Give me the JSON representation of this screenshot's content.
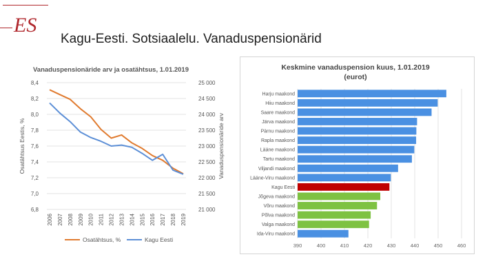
{
  "slide": {
    "title": "Kagu-Eesti. Sotsiaalelu. Vanaduspensionärid",
    "logo": "ES"
  },
  "colors": {
    "accent": "#b0282d",
    "orange": "#e07a2e",
    "blue": "#5b8ed6",
    "bar_blue": "#4a90e2",
    "bar_red": "#c00000",
    "bar_green": "#7ec242"
  },
  "chart_data": [
    {
      "type": "line",
      "title": "Vanaduspensionäride arv ja osatähtsus, 1.01.2019",
      "x": [
        "2006",
        "2007",
        "2008",
        "2009",
        "2010",
        "2011",
        "2012",
        "2013",
        "2014",
        "2015",
        "2016",
        "2017",
        "2018",
        "2019"
      ],
      "ylabel_left": "Osatähtsus Eestis, %",
      "ylabel_right": "Vanaduspensionäride arv",
      "ylim_left": [
        6.8,
        8.4
      ],
      "ylim_right": [
        21000,
        25000
      ],
      "left_ticks": [
        "8,4",
        "8,2",
        "8,0",
        "7,8",
        "7,6",
        "7,4",
        "7,2",
        "7,0",
        "6,8"
      ],
      "right_ticks": [
        "25 000",
        "24 500",
        "24 000",
        "23 500",
        "23 000",
        "22 500",
        "22 000",
        "21 500",
        "21 000"
      ],
      "grid": true,
      "legend_position": "bottom",
      "series": [
        {
          "name": "Osatähtsus, %",
          "axis": "left",
          "color": "#e07a2e",
          "values": [
            8.31,
            8.25,
            8.19,
            8.07,
            7.97,
            7.81,
            7.7,
            7.74,
            7.64,
            7.57,
            7.48,
            7.42,
            7.32,
            7.25
          ]
        },
        {
          "name": "Kagu Eesti",
          "axis": "right",
          "color": "#5b8ed6",
          "values": [
            24360,
            24040,
            23770,
            23440,
            23270,
            23150,
            23000,
            23030,
            22960,
            22770,
            22550,
            22740,
            22240,
            22110
          ]
        }
      ]
    },
    {
      "type": "bar",
      "orientation": "horizontal",
      "title": "Keskmine vanaduspension kuus, 1.01.2019",
      "subtitle": "(eurot)",
      "xlim": [
        390,
        460
      ],
      "x_ticks": [
        "390",
        "400",
        "410",
        "420",
        "430",
        "440",
        "450",
        "460"
      ],
      "grid": true,
      "categories": [
        "Harju maakond",
        "Hiiu maakond",
        "Saare maakond",
        "Järva maakond",
        "Pärnu maakond",
        "Rapla maakond",
        "Lääne maakond",
        "Tartu maakond",
        "Viljandi maakond",
        "Lääne-Viru maakond",
        "Kagu Eesti",
        "Jõgeva maakond",
        "Võru maakond",
        "Põlva maakond",
        "Valga maakond",
        "Ida-Viru maakond"
      ],
      "values": [
        453.5,
        449.8,
        447.2,
        441.0,
        440.7,
        440.6,
        439.8,
        438.8,
        432.9,
        429.8,
        429.2,
        425.3,
        423.9,
        421.2,
        420.5,
        411.7
      ],
      "bar_colors": [
        "#4a90e2",
        "#4a90e2",
        "#4a90e2",
        "#4a90e2",
        "#4a90e2",
        "#4a90e2",
        "#4a90e2",
        "#4a90e2",
        "#4a90e2",
        "#4a90e2",
        "#c00000",
        "#7ec242",
        "#7ec242",
        "#7ec242",
        "#7ec242",
        "#4a90e2"
      ]
    }
  ]
}
